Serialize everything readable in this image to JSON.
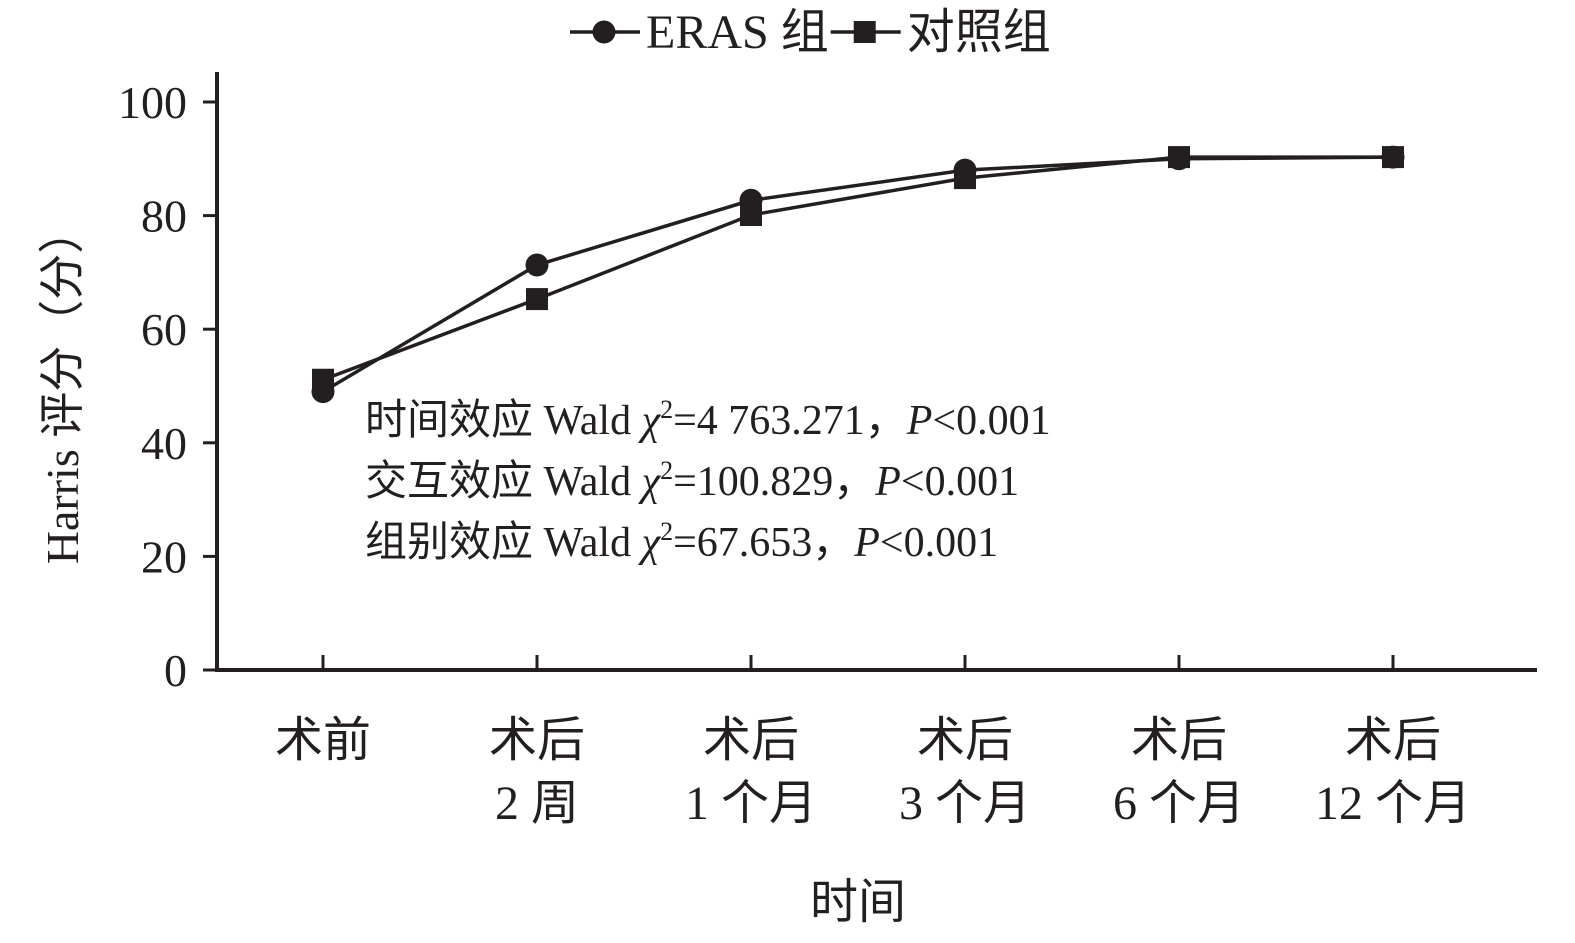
{
  "chart_data": {
    "type": "line",
    "x_label": "时间",
    "y_label": "Harris 评分（分）",
    "categories": [
      [
        "术前"
      ],
      [
        "术后",
        "2 周"
      ],
      [
        "术后",
        "1 个月"
      ],
      [
        "术后",
        "3 个月"
      ],
      [
        "术后",
        "6 个月"
      ],
      [
        "术后",
        "12 个月"
      ]
    ],
    "series": [
      {
        "name": "ERAS 组",
        "color": "#231f20",
        "marker": "circle",
        "values": [
          49,
          71.3,
          82.7,
          88,
          90,
          90.3
        ]
      },
      {
        "name": "对照组",
        "color": "#231f20",
        "marker": "square",
        "values": [
          51.1,
          65.3,
          80.1,
          86.6,
          90.3,
          90.3
        ]
      }
    ],
    "ylim": [
      0,
      100
    ],
    "yticks": [
      0,
      20,
      40,
      60,
      80,
      100
    ],
    "legend": "top",
    "annotations": [
      [
        "时间效应 Wald ",
        "χ",
        "2",
        "=4 763.271，",
        "P",
        "<0.001"
      ],
      [
        "交互效应 Wald ",
        "χ",
        "2",
        "=100.829，",
        "P",
        "<0.001"
      ],
      [
        "组别效应 Wald ",
        "χ",
        "2",
        "=67.653，",
        "P",
        "<0.001"
      ]
    ]
  }
}
